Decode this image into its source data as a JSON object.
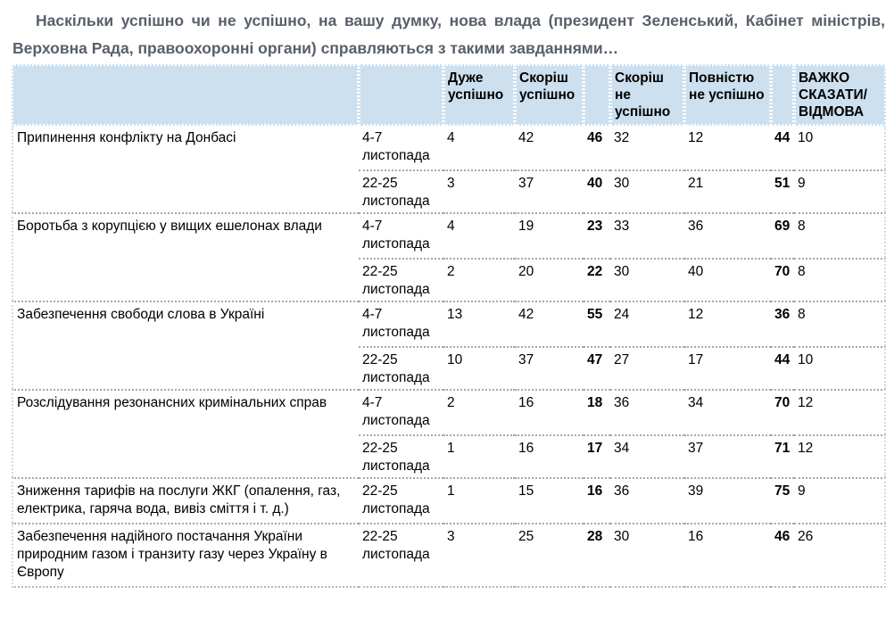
{
  "intro": "Наскільки успішно чи не успішно, на вашу думку, нова влада (президент Зеленський, Кабінет міністрів, Верховна Рада, правоохоронні органи) справляються з такими завданнями…",
  "colors": {
    "header_bg": "#cde0ef",
    "intro_text": "#57606b",
    "row_separator": "#a8a8a8"
  },
  "table": {
    "columns": [
      {
        "key": "task",
        "label": ""
      },
      {
        "key": "date",
        "label": ""
      },
      {
        "key": "very-successful",
        "label": "Дуже успішно"
      },
      {
        "key": "rather-successful",
        "label": "Скоріш успішно"
      },
      {
        "key": "successful-total",
        "label": ""
      },
      {
        "key": "rather-unsuccessful",
        "label": "Скоріш не успішно"
      },
      {
        "key": "completely-unsuccessful",
        "label": "Повністю не успішно"
      },
      {
        "key": "unsuccessful-total",
        "label": ""
      },
      {
        "key": "hard-to-say",
        "label": "ВАЖКО СКАЗАТИ/ВІДМОВА"
      }
    ],
    "groups": [
      {
        "task": "Припинення конфлікту на Донбасі",
        "rows": [
          {
            "date": "4-7 листопада",
            "values": [
              4,
              42,
              46,
              32,
              12,
              44,
              10
            ]
          },
          {
            "date": "22-25 листопада",
            "values": [
              3,
              37,
              40,
              30,
              21,
              51,
              9
            ]
          }
        ]
      },
      {
        "task": "Боротьба з корупцією у вищих ешелонах влади",
        "rows": [
          {
            "date": "4-7 листопада",
            "values": [
              4,
              19,
              23,
              33,
              36,
              69,
              8
            ]
          },
          {
            "date": "22-25 листопада",
            "values": [
              2,
              20,
              22,
              30,
              40,
              70,
              8
            ]
          }
        ]
      },
      {
        "task": "Забезпечення свободи слова в Україні",
        "rows": [
          {
            "date": "4-7 листопада",
            "values": [
              13,
              42,
              55,
              24,
              12,
              36,
              8
            ]
          },
          {
            "date": "22-25 листопада",
            "values": [
              10,
              37,
              47,
              27,
              17,
              44,
              10
            ]
          }
        ]
      },
      {
        "task": "Розслідування резонансних кримінальних справ",
        "rows": [
          {
            "date": "4-7 листопада",
            "values": [
              2,
              16,
              18,
              36,
              34,
              70,
              12
            ]
          },
          {
            "date": "22-25 листопада",
            "values": [
              1,
              16,
              17,
              34,
              37,
              71,
              12
            ]
          }
        ]
      },
      {
        "task": "Зниження тарифів на послуги ЖКГ (опалення, газ, електрика, гаряча вода, вивіз сміття і т. д.)",
        "rows": [
          {
            "date": "22-25 листопада",
            "values": [
              1,
              15,
              16,
              36,
              39,
              75,
              9
            ]
          }
        ]
      },
      {
        "task": "Забезпечення надійного постачання України природним газом і транзиту газу через Україну в Європу",
        "rows": [
          {
            "date": "22-25 листопада",
            "values": [
              3,
              25,
              28,
              30,
              16,
              46,
              26
            ]
          }
        ]
      }
    ]
  }
}
